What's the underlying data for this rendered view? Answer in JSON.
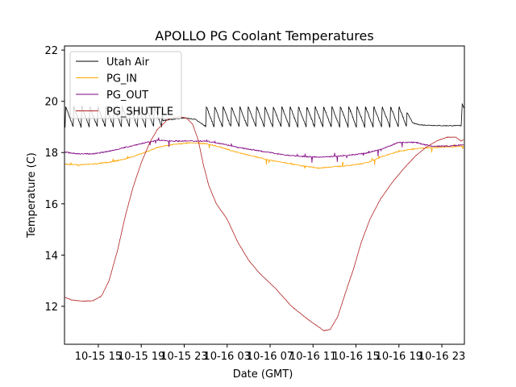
{
  "chart_data": {
    "type": "line",
    "title": "APOLLO PG Coolant Temperatures",
    "xlabel": "Date (GMT)",
    "ylabel": "Temperature (C)",
    "x_unit": "hours since 10-15 00:00 GMT",
    "xlim": [
      11.85,
      49.1
    ],
    "ylim": [
      10.52,
      22.16
    ],
    "x_ticks": [
      {
        "value": 15,
        "label": "10-15 15"
      },
      {
        "value": 19,
        "label": "10-15 19"
      },
      {
        "value": 23,
        "label": "10-15 23"
      },
      {
        "value": 27,
        "label": "10-16 03"
      },
      {
        "value": 31,
        "label": "10-16 07"
      },
      {
        "value": 35,
        "label": "10-16 11"
      },
      {
        "value": 39,
        "label": "10-16 15"
      },
      {
        "value": 43,
        "label": "10-16 19"
      },
      {
        "value": 47,
        "label": "10-16 23"
      }
    ],
    "y_ticks": [
      {
        "value": 12,
        "label": "12"
      },
      {
        "value": 14,
        "label": "14"
      },
      {
        "value": 16,
        "label": "16"
      },
      {
        "value": 18,
        "label": "18"
      },
      {
        "value": 20,
        "label": "20"
      },
      {
        "value": 22,
        "label": "22"
      }
    ],
    "grid": false,
    "legend": {
      "placement": "top-left",
      "entries": [
        "Utah Air",
        "PG_IN",
        "PG_OUT",
        "PG_SHUTTLE"
      ]
    },
    "series": [
      {
        "name": "Utah Air",
        "color": "#000000",
        "sawtooth": [
          {
            "from": 11.9,
            "to": 21.0,
            "low": 19.0,
            "high": 19.8,
            "period": 0.75
          },
          {
            "from": 25.0,
            "to": 43.7,
            "low": 19.0,
            "high": 19.8,
            "period": 0.78
          }
        ],
        "x": [
          21.0,
          22.0,
          23.0,
          24.0,
          24.9,
          43.7,
          44.3,
          45.0,
          47.0,
          48.8,
          48.9,
          49.05
        ],
        "y": [
          19.25,
          19.3,
          19.35,
          19.3,
          19.05,
          19.6,
          19.15,
          19.08,
          19.05,
          19.05,
          19.9,
          19.75
        ]
      },
      {
        "name": "PG_IN",
        "color": "#ffa500",
        "x": [
          11.9,
          13.0,
          14.5,
          16.0,
          17.5,
          19.0,
          20.5,
          22.0,
          23.5,
          25.0,
          26.5,
          28.0,
          29.5,
          31.0,
          32.5,
          34.0,
          35.5,
          37.0,
          38.5,
          40.0,
          41.5,
          43.0,
          44.5,
          46.0,
          47.5,
          49.05
        ],
        "y": [
          17.55,
          17.52,
          17.55,
          17.62,
          17.75,
          17.95,
          18.2,
          18.32,
          18.38,
          18.35,
          18.2,
          18.0,
          17.85,
          17.7,
          17.6,
          17.48,
          17.4,
          17.45,
          17.5,
          17.6,
          17.85,
          18.05,
          18.15,
          18.2,
          18.22,
          18.25
        ]
      },
      {
        "name": "PG_OUT",
        "color": "#800080",
        "x": [
          11.9,
          13.0,
          14.5,
          16.0,
          17.5,
          19.0,
          20.5,
          22.0,
          23.5,
          25.0,
          26.5,
          28.0,
          29.5,
          31.0,
          32.5,
          34.0,
          35.5,
          37.0,
          38.5,
          40.0,
          41.5,
          43.0,
          44.5,
          46.0,
          47.5,
          49.05
        ],
        "y": [
          18.02,
          17.95,
          17.95,
          18.05,
          18.2,
          18.35,
          18.48,
          18.45,
          18.45,
          18.45,
          18.35,
          18.2,
          18.1,
          18.0,
          17.9,
          17.85,
          17.82,
          17.85,
          17.9,
          17.98,
          18.15,
          18.4,
          18.4,
          18.25,
          18.25,
          18.3
        ]
      },
      {
        "name": "PG_SHUTTLE",
        "color": "#b22222",
        "x": [
          11.9,
          12.5,
          13.5,
          14.5,
          15.3,
          16.0,
          16.8,
          17.5,
          18.2,
          19.0,
          19.8,
          20.5,
          21.5,
          22.5,
          23.2,
          23.8,
          24.3,
          24.8,
          25.3,
          26.0,
          27.0,
          28.0,
          29.0,
          30.0,
          31.5,
          33.0,
          34.5,
          35.5,
          36.0,
          36.6,
          37.3,
          38.0,
          38.8,
          39.5,
          40.3,
          41.3,
          42.5,
          43.5,
          44.5,
          45.5,
          46.5,
          47.5,
          48.3,
          48.8,
          49.05
        ],
        "y": [
          12.35,
          12.25,
          12.2,
          12.22,
          12.4,
          13.0,
          14.2,
          15.5,
          16.6,
          17.6,
          18.4,
          18.9,
          19.3,
          19.4,
          19.35,
          19.1,
          18.5,
          17.5,
          16.7,
          16.0,
          15.4,
          14.5,
          13.8,
          13.3,
          12.7,
          12.0,
          11.5,
          11.2,
          11.05,
          11.1,
          11.6,
          12.5,
          13.5,
          14.5,
          15.4,
          16.2,
          16.9,
          17.4,
          17.85,
          18.2,
          18.45,
          18.6,
          18.6,
          18.45,
          18.5
        ]
      }
    ]
  }
}
